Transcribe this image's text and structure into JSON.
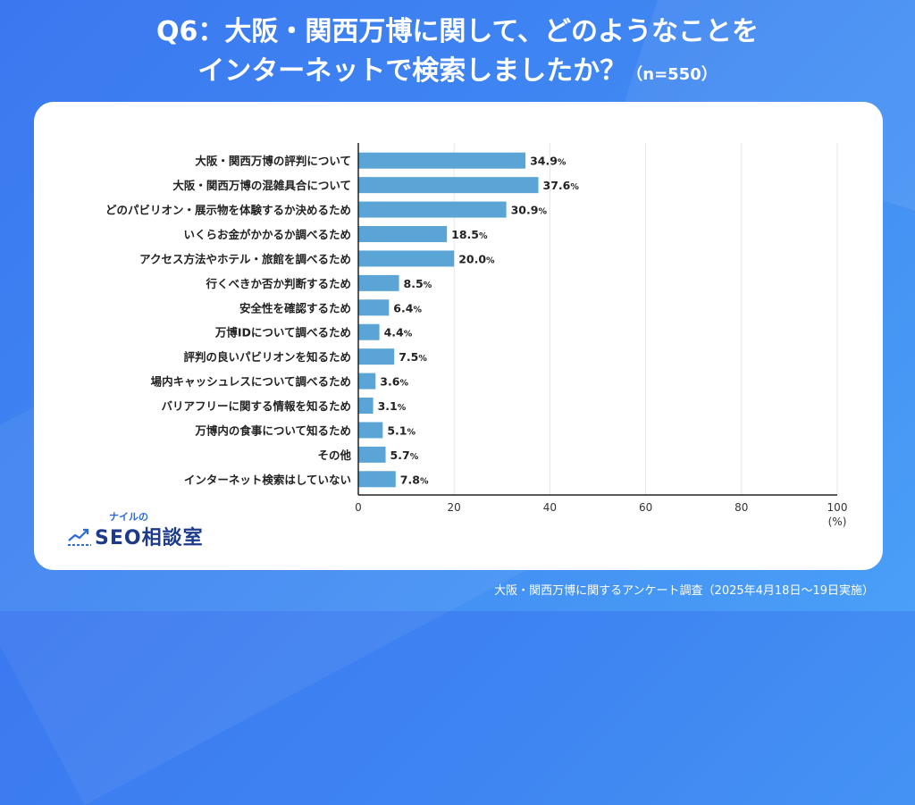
{
  "title": {
    "line1": "Q6：大阪・関西万博に関して、どのようなことを",
    "line2": "インターネットで検索しましたか？",
    "n": "（n=550）"
  },
  "logo": {
    "sub": "ナイルの",
    "main": "SEO相談室"
  },
  "footer": "大阪・関西万博に関するアンケート調査（2025年4月18日〜19日実施）",
  "colors": {
    "bar": "#5aa5d5",
    "background": "#3f86f2",
    "axis": "#222222",
    "grid": "#e6e6e6"
  },
  "chart_data": {
    "type": "bar",
    "orientation": "horizontal",
    "categories": [
      "大阪・関西万博の評判について",
      "大阪・関西万博の混雑具合について",
      "どのパビリオン・展示物を体験するか決めるため",
      "いくらお金がかかるか調べるため",
      "アクセス方法やホテル・旅館を調べるため",
      "行くべきか否か判断するため",
      "安全性を確認するため",
      "万博IDについて調べるため",
      "評判の良いパビリオンを知るため",
      "場内キャッシュレスについて調べるため",
      "バリアフリーに関する情報を知るため",
      "万博内の食事について知るため",
      "その他",
      "インターネット検索はしていない"
    ],
    "values": [
      34.9,
      37.6,
      30.9,
      18.5,
      20.0,
      8.5,
      6.4,
      4.4,
      7.5,
      3.6,
      3.1,
      5.1,
      5.7,
      7.8
    ],
    "value_labels": [
      "34.9",
      "37.6",
      "30.9",
      "18.5",
      "20.0",
      "8.5",
      "6.4",
      "4.4",
      "7.5",
      "3.6",
      "3.1",
      "5.1",
      "5.7",
      "7.8"
    ],
    "value_suffix": "%",
    "xlim": [
      0,
      100
    ],
    "xticks": [
      "0",
      "20",
      "40",
      "60",
      "80",
      "100"
    ],
    "xticks_values": [
      0,
      20,
      40,
      60,
      80,
      100
    ],
    "xunit": "(%)",
    "grid": true
  }
}
